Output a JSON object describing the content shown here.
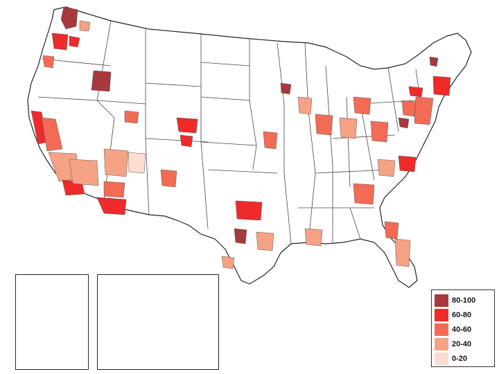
{
  "legend": {
    "items": [
      {
        "label": "80-100",
        "color": "#a8383b"
      },
      {
        "label": "60-80",
        "color": "#ee2a2a"
      },
      {
        "label": "40-60",
        "color": "#f46b55"
      },
      {
        "label": "20-40",
        "color": "#f6a284"
      },
      {
        "label": "0-20",
        "color": "#fbddd2"
      }
    ]
  },
  "colors": {
    "c80": "#a8383b",
    "c60": "#ee2a2a",
    "c40": "#f46b55",
    "c20": "#f6a284",
    "c0": "#fbddd2",
    "outline": "#333333"
  }
}
